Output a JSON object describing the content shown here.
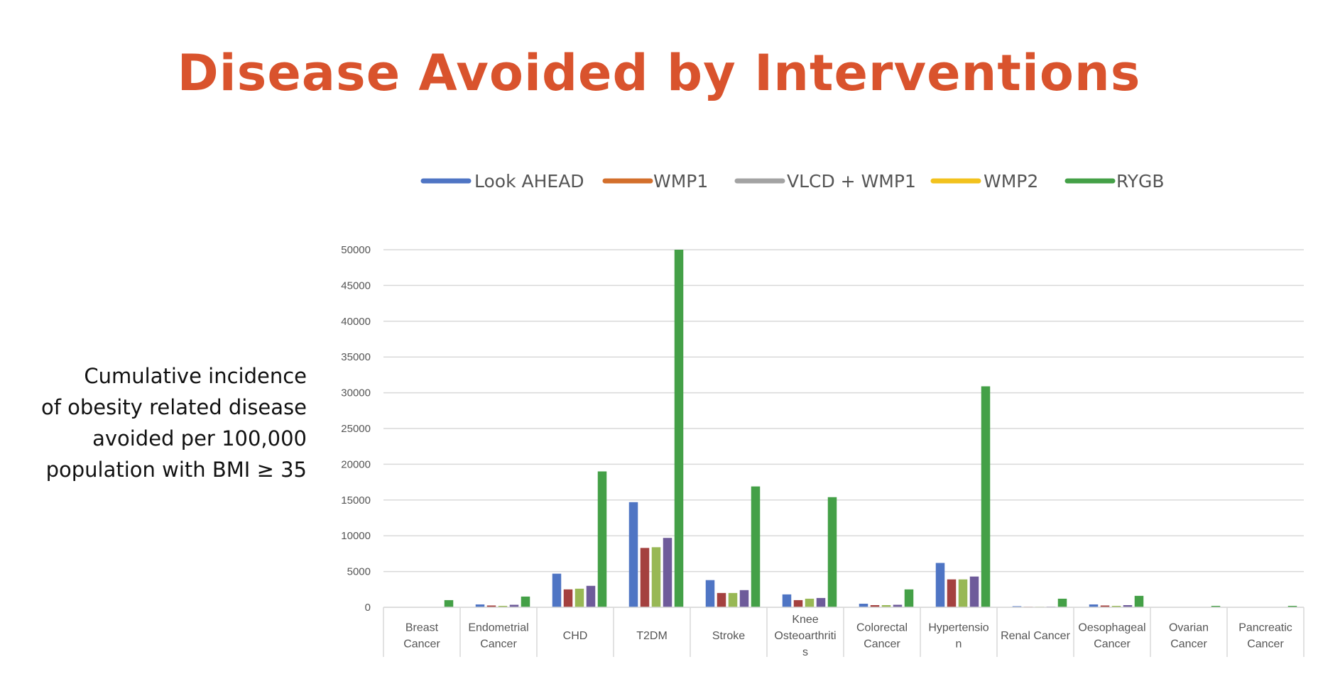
{
  "slide": {
    "title": "Disease Avoided by Interventions",
    "side_caption": [
      "Cumulative incidence",
      "of obesity related disease",
      "avoided per 100,000",
      "population with BMI ≥ 35"
    ]
  },
  "chart_data": {
    "type": "bar",
    "title": "",
    "xlabel": "",
    "ylabel": "",
    "ylim": [
      0,
      50000
    ],
    "yticks": [
      0,
      5000,
      10000,
      15000,
      20000,
      25000,
      30000,
      35000,
      40000,
      45000,
      50000
    ],
    "grid": true,
    "legend_position": "top",
    "legend": [
      {
        "label": "Look AHEAD",
        "color": "#4f75c4"
      },
      {
        "label": "WMP1",
        "color": "#d36f2c"
      },
      {
        "label": "VLCD + WMP1",
        "color": "#a3a3a3"
      },
      {
        "label": "WMP2",
        "color": "#f2c21d"
      },
      {
        "label": "RYGB",
        "color": "#44a047"
      }
    ],
    "categories": [
      [
        "Breast",
        "Cancer"
      ],
      [
        "Endometrial",
        "Cancer"
      ],
      [
        "CHD"
      ],
      [
        "T2DM"
      ],
      [
        "Stroke"
      ],
      [
        "Knee",
        "Osteoarthriti",
        "s"
      ],
      [
        "Colorectal",
        "Cancer"
      ],
      [
        "Hypertensio",
        "n"
      ],
      [
        "Renal Cancer"
      ],
      [
        "Oesophageal",
        "Cancer"
      ],
      [
        "Ovarian",
        "Cancer"
      ],
      [
        "Pancreatic",
        "Cancer"
      ]
    ],
    "series": [
      {
        "color": "#4f75c4",
        "values": [
          0,
          400,
          4700,
          14700,
          3800,
          1800,
          500,
          6200,
          150,
          400,
          0,
          0
        ]
      },
      {
        "color": "#a4413f",
        "values": [
          0,
          250,
          2500,
          8300,
          2000,
          1000,
          300,
          3900,
          80,
          250,
          0,
          0
        ]
      },
      {
        "color": "#98b855",
        "values": [
          0,
          200,
          2600,
          8400,
          2000,
          1200,
          300,
          3900,
          80,
          200,
          0,
          0
        ]
      },
      {
        "color": "#6e5b9a",
        "values": [
          0,
          350,
          3000,
          9700,
          2400,
          1300,
          350,
          4300,
          100,
          300,
          0,
          0
        ]
      },
      {
        "color": "#44a047",
        "values": [
          1000,
          1500,
          19000,
          50000,
          16900,
          15400,
          2500,
          30900,
          1200,
          1600,
          200,
          200
        ]
      }
    ]
  }
}
